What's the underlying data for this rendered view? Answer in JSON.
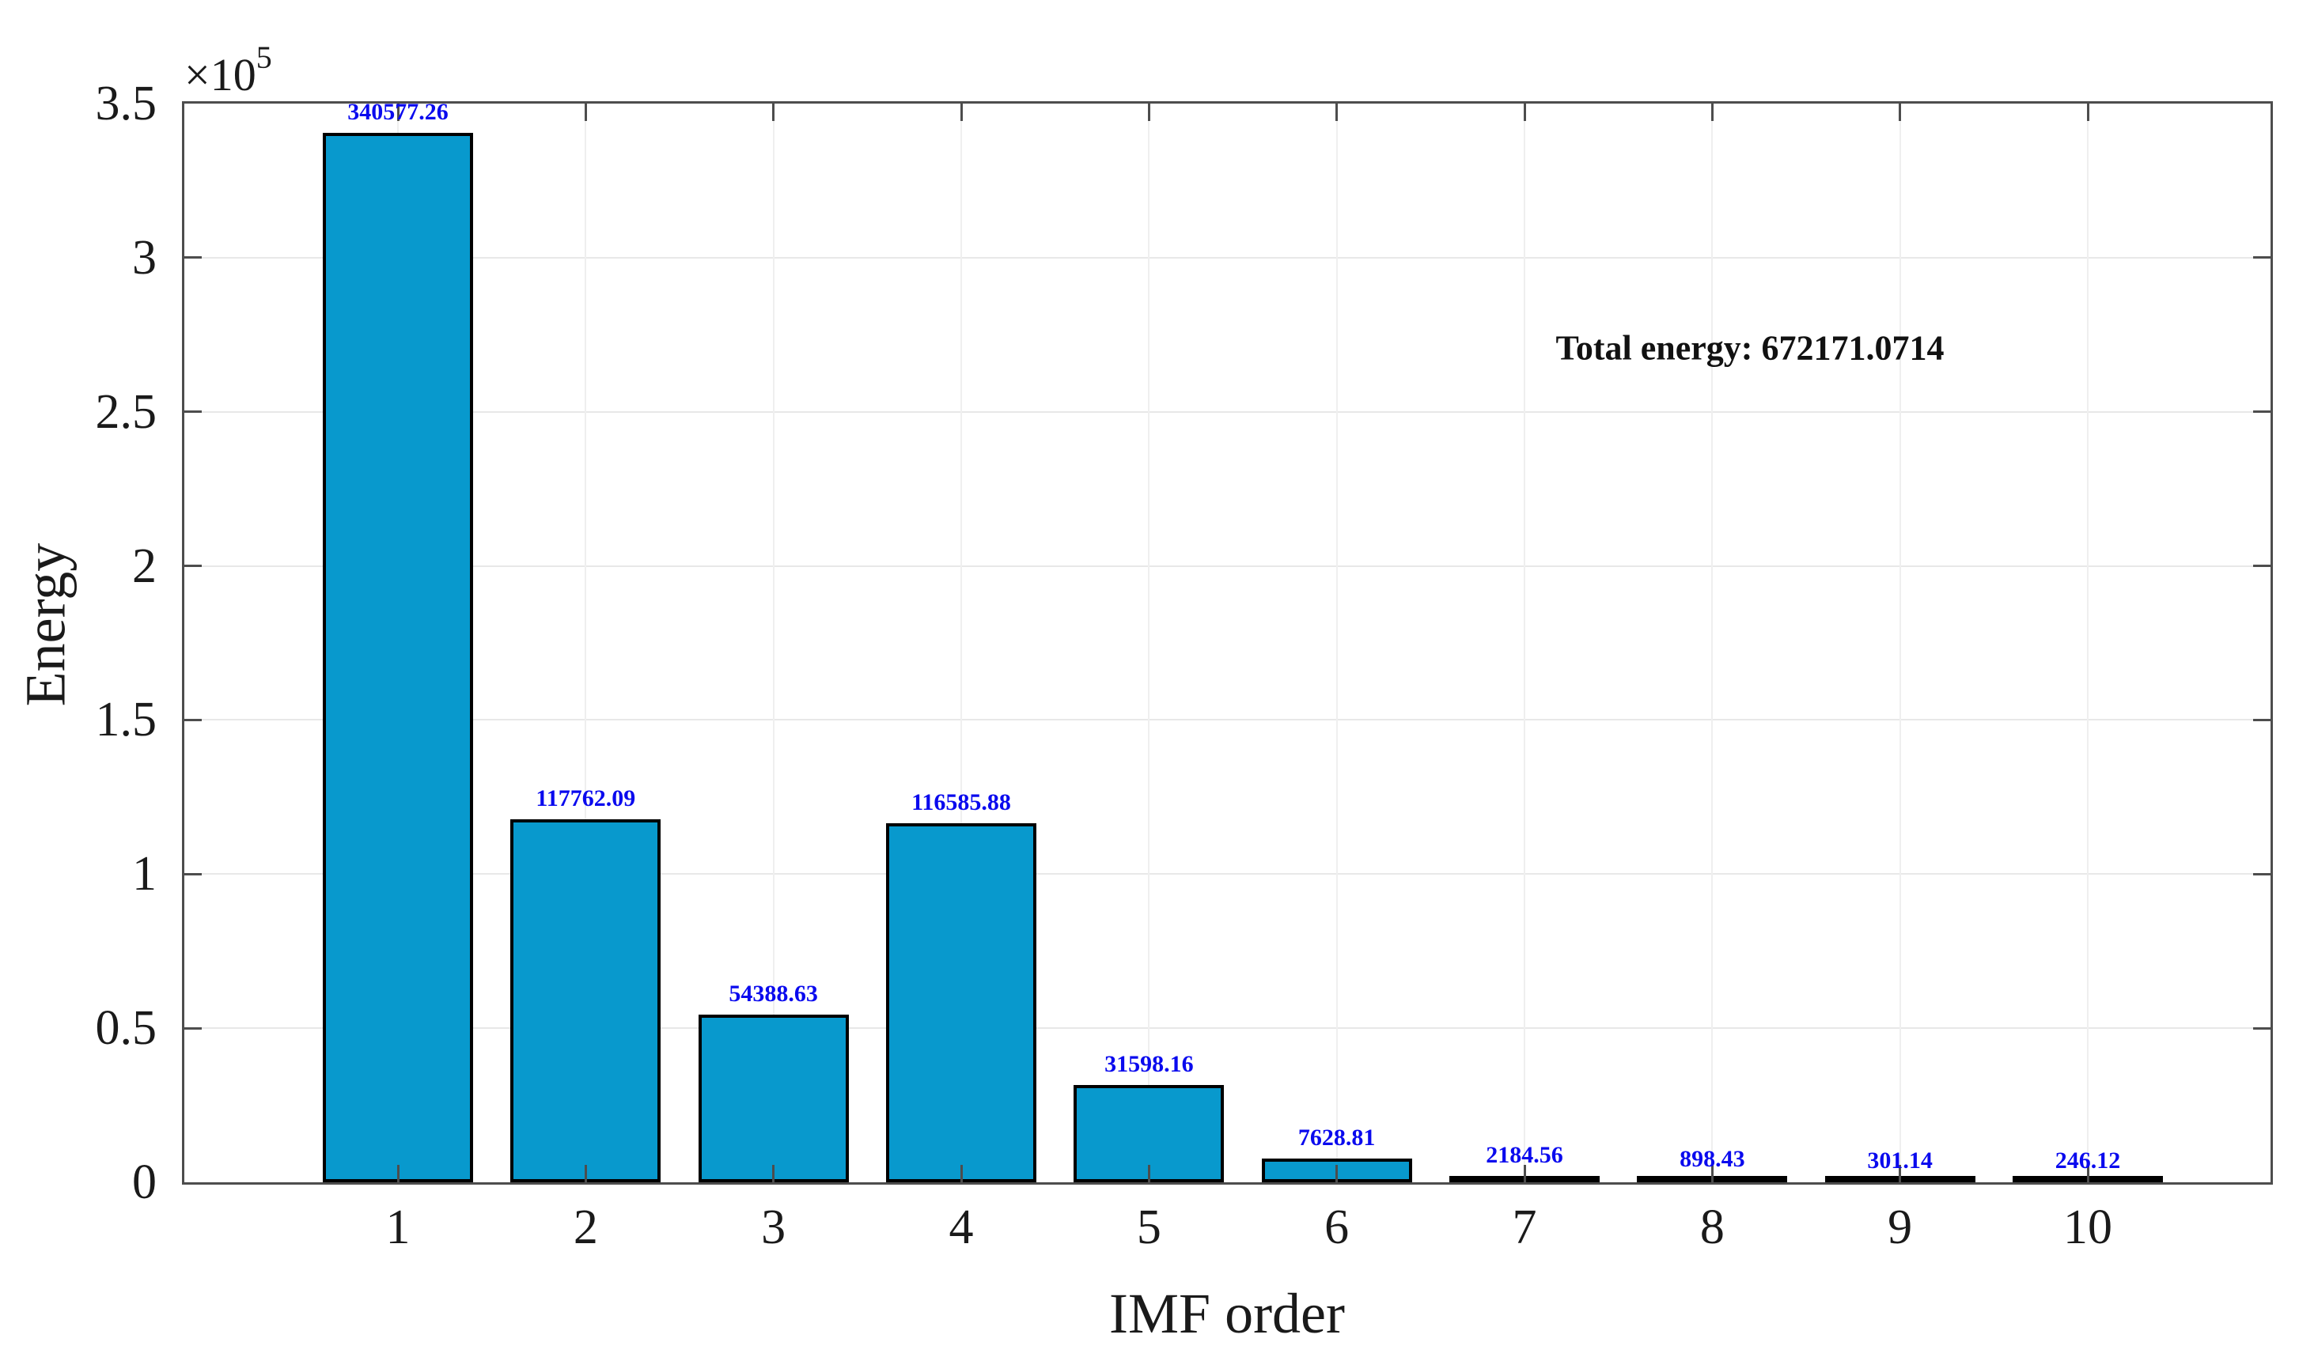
{
  "chart_data": {
    "type": "bar",
    "title": "",
    "xlabel": "IMF order",
    "ylabel": "Energy",
    "y_axis_multiplier": {
      "base": "×10",
      "exp": "5"
    },
    "annotation": "Total energy: 672171.0714",
    "categories": [
      "1",
      "2",
      "3",
      "4",
      "5",
      "6",
      "7",
      "8",
      "9",
      "10"
    ],
    "values": [
      340577.26,
      117762.09,
      54388.63,
      116585.88,
      31598.16,
      7628.81,
      2184.56,
      898.43,
      301.14,
      246.12
    ],
    "bar_value_labels": [
      "340577.26",
      "117762.09",
      "54388.63",
      "116585.88",
      "31598.16",
      "7628.81",
      "2184.56",
      "898.43",
      "301.14",
      "246.12"
    ],
    "ylim": [
      0,
      350000
    ],
    "y_ticks": [
      {
        "value": 0,
        "label": "0"
      },
      {
        "value": 50000,
        "label": "0.5"
      },
      {
        "value": 100000,
        "label": "1"
      },
      {
        "value": 150000,
        "label": "1.5"
      },
      {
        "value": 200000,
        "label": "2"
      },
      {
        "value": 250000,
        "label": "2.5"
      },
      {
        "value": 300000,
        "label": "3"
      },
      {
        "value": 350000,
        "label": "3.5"
      }
    ],
    "grid": true,
    "legend_position": "none",
    "colors": {
      "bar_fill": "#0899CD",
      "bar_edge": "#000000",
      "value_label": "#0A0AEE",
      "axis": "#4D4D4D",
      "grid_line_h": "#E8E8E8",
      "grid_line_v": "#EFEFEF",
      "text": "#1A1A1A"
    }
  }
}
